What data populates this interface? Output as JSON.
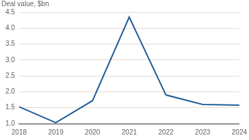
{
  "chart_data": {
    "type": "line",
    "title": "Deal value, $bn",
    "categories": [
      "2018",
      "2019",
      "2020",
      "2021",
      "2022",
      "2023",
      "2024"
    ],
    "values": [
      1.53,
      1.03,
      1.72,
      4.35,
      1.9,
      1.6,
      1.58
    ],
    "color": "#1f5c99",
    "ylim": [
      1,
      4.5
    ],
    "yticks": [
      {
        "value": 1,
        "label": "1.0"
      },
      1.5,
      {
        "value": 2,
        "label": "2.0"
      },
      2.5,
      {
        "value": 3,
        "label": "3.0"
      },
      3.5,
      {
        "value": 4,
        "label": "4.0"
      },
      4.5
    ],
    "grid": true
  }
}
